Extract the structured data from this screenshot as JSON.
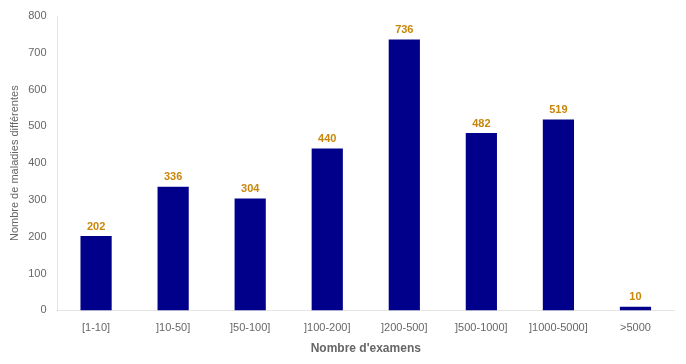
{
  "chart_data": {
    "type": "bar",
    "categories": [
      "[1-10]",
      "]10-50]",
      "]50-100]",
      "]100-200]",
      "]200-500]",
      "]500-1000]",
      "]1000-5000]",
      ">5000"
    ],
    "values": [
      202,
      336,
      304,
      440,
      736,
      482,
      519,
      10
    ],
    "color": "#00008B",
    "xlabel": "Nombre d'examens",
    "ylabel": "Nombre de maladies différentes",
    "ylim": [
      0,
      800
    ],
    "yticks": [
      0,
      100,
      200,
      300,
      400,
      500,
      600,
      700,
      800
    ],
    "grid": false,
    "data_labels": true
  }
}
